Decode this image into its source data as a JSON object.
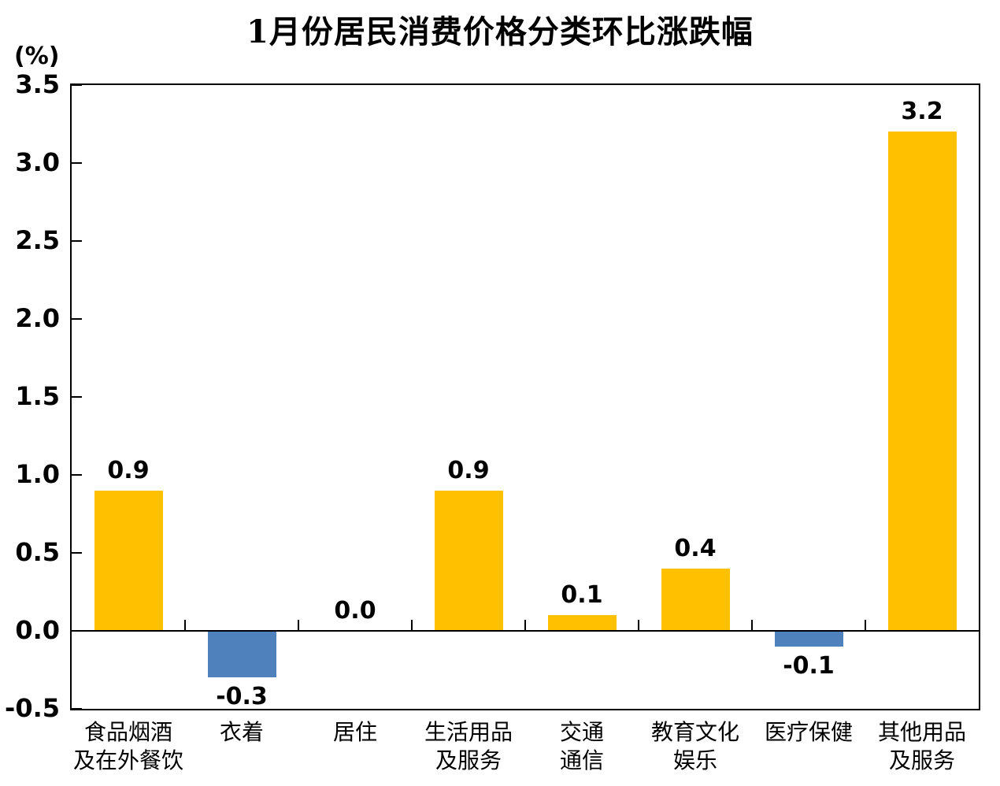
{
  "page": {
    "background_color": "#FFFFFF",
    "text_color": "#000000"
  },
  "chart_data": {
    "type": "bar",
    "title": "1月份居民消费价格分类环比涨跌幅",
    "unit_label": "(%)",
    "xlabel": "",
    "ylabel": "(%)",
    "categories": [
      "食品烟酒及在外餐饮",
      "衣着",
      "居住",
      "生活用品及服务",
      "交通通信",
      "教育文化娱乐",
      "医疗保健",
      "其他用品及服务"
    ],
    "category_lines": [
      [
        "食品烟酒",
        "及在外餐饮"
      ],
      [
        "衣着"
      ],
      [
        "居住"
      ],
      [
        "生活用品",
        "及服务"
      ],
      [
        "交通",
        "通信"
      ],
      [
        "教育文化",
        "娱乐"
      ],
      [
        "医疗保健"
      ],
      [
        "其他用品",
        "及服务"
      ]
    ],
    "values": [
      0.9,
      -0.3,
      0.0,
      0.9,
      0.1,
      0.4,
      -0.1,
      3.2
    ],
    "value_labels": [
      "0.9",
      "-0.3",
      "0.0",
      "0.9",
      "0.1",
      "0.4",
      "-0.1",
      "3.2"
    ],
    "ylim": [
      -0.5,
      3.5
    ],
    "ytick_values": [
      3.5,
      3.0,
      2.5,
      2.0,
      1.5,
      1.0,
      0.5,
      0.0,
      -0.5
    ],
    "ytick_labels": [
      "3.5",
      "3.0",
      "2.5",
      "2.0",
      "1.5",
      "1.0",
      "0.5",
      "0.0",
      "-0.5"
    ],
    "bar_colors": {
      "positive": "#FFC000",
      "negative": "#4F81BD"
    },
    "axis_color": "#000000",
    "grid": false,
    "legend": null
  }
}
